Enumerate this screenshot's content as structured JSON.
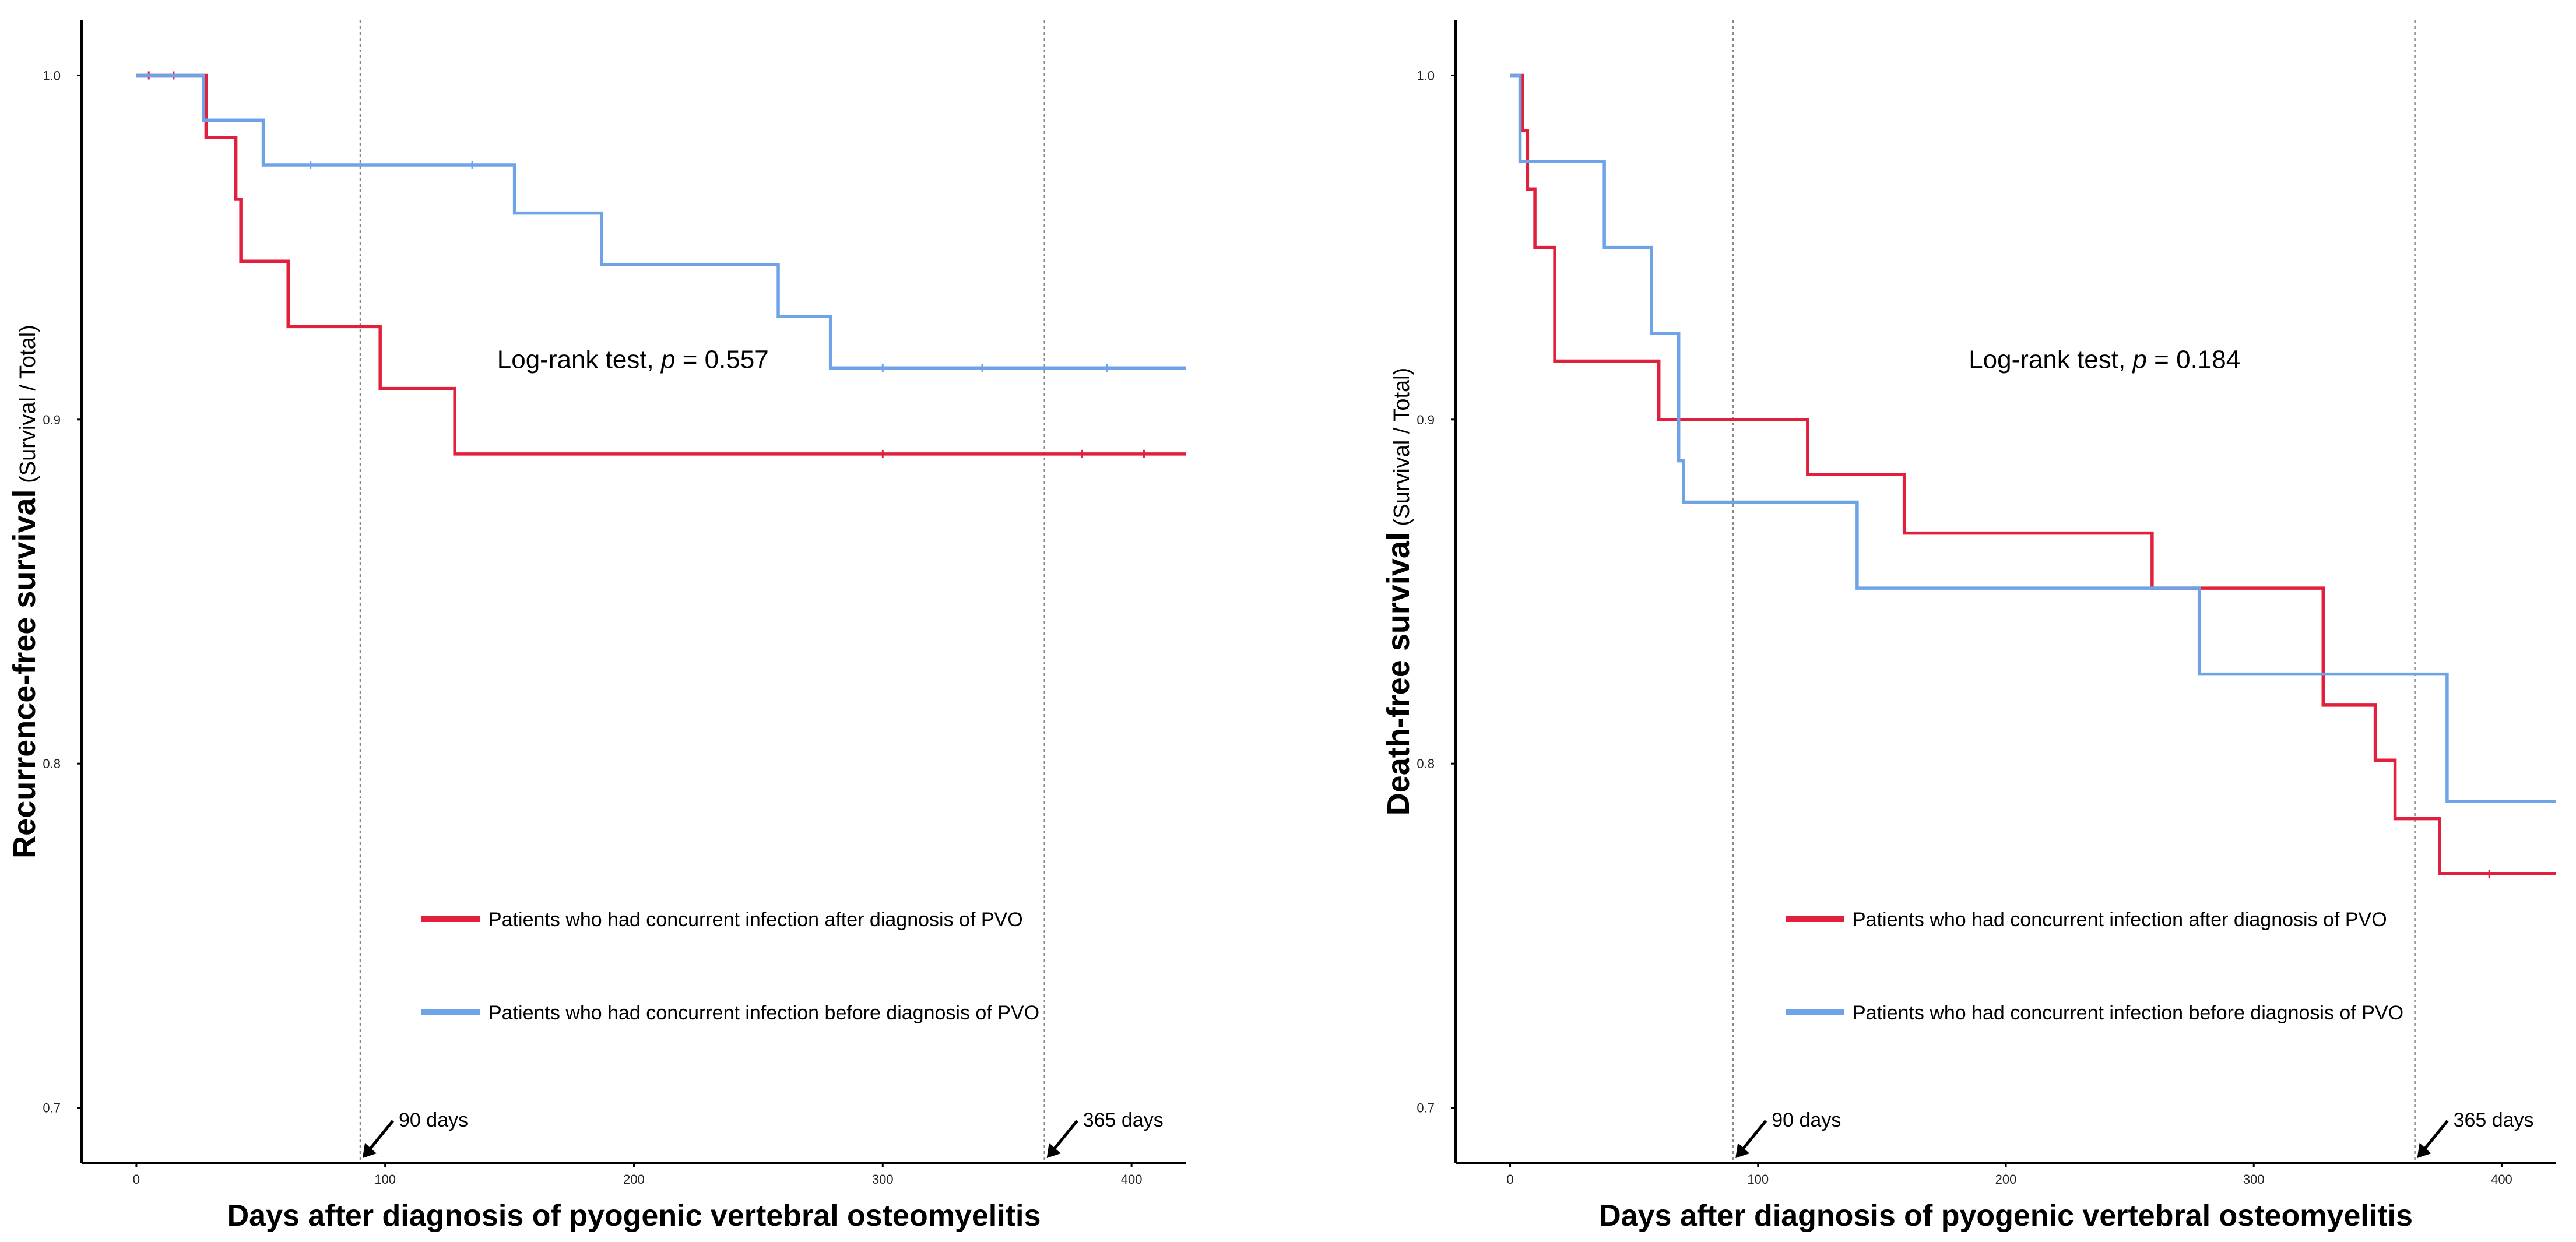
{
  "colors": {
    "red": "#e0203c",
    "blue": "#6fa3e8",
    "ref": "#888888"
  },
  "legend": {
    "red_label": "Patients who had concurrent infection after diagnosis of PVO",
    "blue_label": "Patients who had concurrent infection before diagnosis of PVO"
  },
  "chart_data": [
    {
      "type": "line",
      "title": "",
      "xlabel": "Days after diagnosis of pyogenic vertebral osteomyelitis",
      "ylabel_main": "Recurrence-free survival",
      "ylabel_sub": " (Survival / Total)",
      "xlim": [
        -22,
        422
      ],
      "ylim": [
        0.684,
        1.016
      ],
      "xticks": [
        0,
        100,
        200,
        300,
        400
      ],
      "xtick_labels": [
        "0",
        "100",
        "200",
        "300",
        "400"
      ],
      "yticks": [
        0.7,
        0.8,
        0.9,
        1.0
      ],
      "ytick_labels": [
        "0.7",
        "0.8",
        "0.9",
        "1.0"
      ],
      "reference_lines": [
        90,
        365
      ],
      "annotation_prefix": "Log-rank test, ",
      "annotation_p": "p",
      "annotation_value": " = 0.557",
      "annotation_pos": [
        145,
        0.915
      ],
      "arrow_labels": [
        "90 days",
        "365 days"
      ],
      "series": [
        {
          "name": "Patients who had concurrent infection after diagnosis of PVO",
          "color": "red",
          "x": [
            0,
            28,
            40,
            42,
            61,
            98,
            128,
            422
          ],
          "y": [
            1.0,
            0.982,
            0.964,
            0.946,
            0.927,
            0.909,
            0.89,
            0.89
          ],
          "censored_x": [
            5,
            15,
            300,
            380,
            405
          ]
        },
        {
          "name": "Patients who had concurrent infection before diagnosis of PVO",
          "color": "blue",
          "x": [
            0,
            27,
            51,
            152,
            187,
            258,
            279,
            422
          ],
          "y": [
            1.0,
            0.987,
            0.974,
            0.96,
            0.945,
            0.93,
            0.915,
            0.915
          ],
          "censored_x": [
            70,
            135,
            300,
            340,
            390
          ]
        }
      ]
    },
    {
      "type": "line",
      "title": "",
      "xlabel": "Days after diagnosis of pyogenic vertebral osteomyelitis",
      "ylabel_main": "Death-free survival",
      "ylabel_sub": " (Survival / Total)",
      "xlim": [
        -22,
        422
      ],
      "ylim": [
        0.684,
        1.016
      ],
      "xticks": [
        0,
        100,
        200,
        300,
        400
      ],
      "xtick_labels": [
        "0",
        "100",
        "200",
        "300",
        "400"
      ],
      "yticks": [
        0.7,
        0.8,
        0.9,
        1.0
      ],
      "ytick_labels": [
        "0.7",
        "0.8",
        "0.9",
        "1.0"
      ],
      "reference_lines": [
        90,
        365
      ],
      "annotation_prefix": "Log-rank test, ",
      "annotation_p": "p",
      "annotation_value": " = 0.184",
      "annotation_pos": [
        185,
        0.915
      ],
      "arrow_labels": [
        "90 days",
        "365 days"
      ],
      "series": [
        {
          "name": "Patients who had concurrent infection after diagnosis of PVO",
          "color": "red",
          "x": [
            0,
            5,
            7,
            10,
            18,
            60,
            120,
            159,
            259,
            328,
            349,
            357,
            375,
            422
          ],
          "y": [
            1.0,
            0.984,
            0.967,
            0.95,
            0.917,
            0.9,
            0.884,
            0.867,
            0.851,
            0.817,
            0.801,
            0.784,
            0.768,
            0.768
          ],
          "censored_x": [
            395
          ]
        },
        {
          "name": "Patients who had concurrent infection before diagnosis of PVO",
          "color": "blue",
          "x": [
            0,
            4,
            38,
            57,
            68,
            70,
            140,
            278,
            378,
            422
          ],
          "y": [
            1.0,
            0.975,
            0.95,
            0.925,
            0.888,
            0.876,
            0.851,
            0.826,
            0.789,
            0.789
          ],
          "censored_x": []
        }
      ]
    }
  ]
}
